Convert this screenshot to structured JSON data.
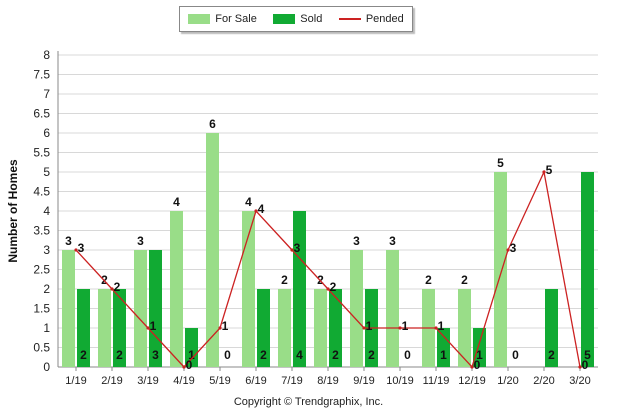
{
  "legend": {
    "for_sale": "For Sale",
    "sold": "Sold",
    "pended": "Pended"
  },
  "copyright": "Copyright © Trendgraphix, Inc.",
  "chart_data": {
    "type": "bar",
    "categories": [
      "1/19",
      "2/19",
      "3/19",
      "4/19",
      "5/19",
      "6/19",
      "7/19",
      "8/19",
      "9/19",
      "10/19",
      "11/19",
      "12/19",
      "1/20",
      "2/20",
      "3/20"
    ],
    "ylabel": "Number of Homes",
    "xlabel": "",
    "ylim": [
      0,
      8
    ],
    "yticks": [
      "0",
      "0.5",
      "1",
      "1.5",
      "2",
      "2.5",
      "3",
      "3.5",
      "4",
      "4.5",
      "5",
      "5.5",
      "6",
      "6.5",
      "7",
      "7.5",
      "8"
    ],
    "grid": true,
    "legend_position": "top",
    "series": [
      {
        "name": "For Sale",
        "type": "bar",
        "color": "#99dd88",
        "values": [
          3,
          2,
          3,
          4,
          6,
          4,
          2,
          2,
          3,
          3,
          2,
          2,
          5,
          0,
          0
        ]
      },
      {
        "name": "Sold",
        "type": "bar",
        "color": "#11aa33",
        "values": [
          2,
          2,
          3,
          1,
          0,
          2,
          4,
          2,
          2,
          0,
          1,
          1,
          0,
          2,
          5
        ]
      },
      {
        "name": "Pended",
        "type": "line",
        "color": "#cc2222",
        "values": [
          3,
          2,
          1,
          0,
          1,
          4,
          3,
          2,
          1,
          1,
          1,
          0,
          3,
          5,
          0
        ]
      }
    ]
  }
}
